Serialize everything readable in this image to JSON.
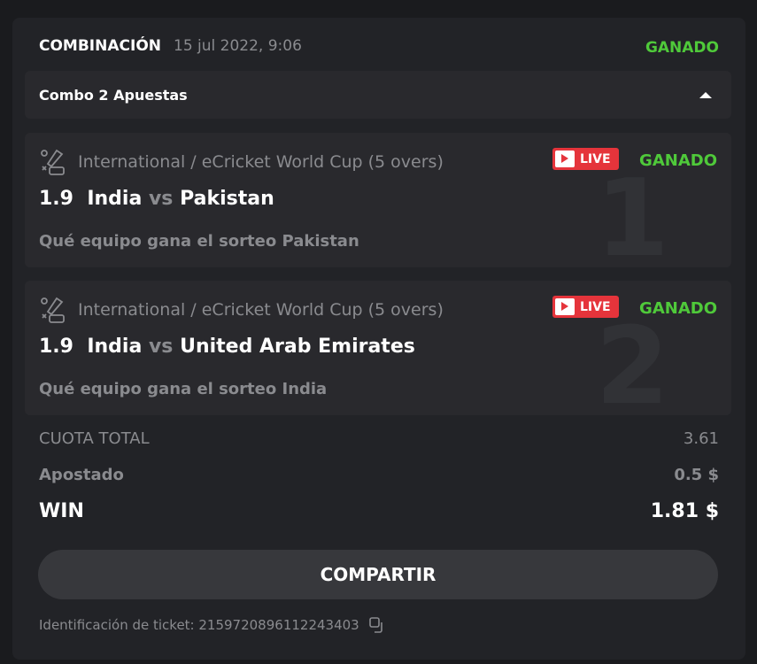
{
  "header": {
    "title": "COMBINACIÓN",
    "datetime": "15 jul 2022, 9:06",
    "status": "GANADO"
  },
  "combo": {
    "label": "Combo 2 Apuestas",
    "icon": "chevron-up-icon"
  },
  "bets": [
    {
      "index": "1",
      "category": "International / eCricket World Cup (5 overs)",
      "live": "LIVE",
      "status": "GANADO",
      "odds": "1.9",
      "team1": "India",
      "vs": "vs",
      "team2": "Pakistan",
      "outcome": "Qué equipo gana el sorteo Pakistan"
    },
    {
      "index": "2",
      "category": "International / eCricket World Cup (5 overs)",
      "live": "LIVE",
      "status": "GANADO",
      "odds": "1.9",
      "team1": "India",
      "vs": "vs",
      "team2": "United Arab Emirates",
      "outcome": "Qué equipo gana el sorteo India"
    }
  ],
  "summary": {
    "total_odds_label": "CUOTA TOTAL",
    "total_odds": "3.61",
    "staked_label": "Apostado",
    "staked": "0.5 $",
    "win_label": "WIN",
    "win": "1.81 $"
  },
  "share_label": "COMPARTIR",
  "ticket": {
    "text": "Identificación de ticket: 2159720896112243403"
  },
  "colors": {
    "won": "#4fc93a",
    "live": "#e5343b"
  }
}
